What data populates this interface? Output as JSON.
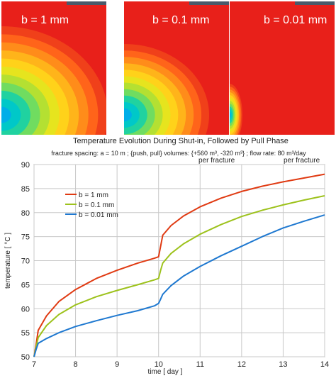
{
  "panels": [
    {
      "label": "b = 1 mm",
      "spread": 1.0
    },
    {
      "label": "b = 0.1 mm",
      "spread": 0.8
    },
    {
      "label": "b = 0.01 mm",
      "spread": 0.12
    }
  ],
  "panel_colors": {
    "hot": "#e8201a",
    "cold": "#00aee8"
  },
  "chart_data": {
    "type": "line",
    "title": "Temperature Evolution During Shut-in, Followed by Pull Phase",
    "subtitle": "fracture spacing: a = 10 m ;  {push, pull} volumes: {+560 m³, -320 m³} ;  flow rate: 80 m³/day",
    "annotation_left": "per fracture",
    "annotation_right": "per fracture",
    "xlabel": "time   [ day ]",
    "ylabel": "temperature   [ °C ]",
    "xlim": [
      7,
      14
    ],
    "ylim": [
      50,
      90
    ],
    "xticks": [
      7,
      8,
      9,
      10,
      11,
      12,
      13,
      14
    ],
    "yticks": [
      50,
      55,
      60,
      65,
      70,
      75,
      80,
      85,
      90
    ],
    "grid": true,
    "legend_position": "top-left",
    "series": [
      {
        "name": "b = 1 mm",
        "color": "#e03a12",
        "x": [
          7.0,
          7.05,
          7.1,
          7.3,
          7.6,
          8.0,
          8.5,
          9.0,
          9.5,
          9.9,
          10.0,
          10.05,
          10.1,
          10.3,
          10.6,
          11.0,
          11.5,
          12.0,
          12.5,
          13.0,
          13.5,
          14.0
        ],
        "y": [
          50.0,
          52.5,
          55.5,
          58.5,
          61.5,
          64.0,
          66.3,
          68.0,
          69.5,
          70.5,
          70.8,
          73.0,
          75.3,
          77.3,
          79.3,
          81.2,
          83.0,
          84.4,
          85.5,
          86.4,
          87.2,
          88.0
        ]
      },
      {
        "name": "b = 0.1 mm",
        "color": "#9dc21c",
        "x": [
          7.0,
          7.05,
          7.1,
          7.3,
          7.6,
          8.0,
          8.5,
          9.0,
          9.5,
          9.9,
          10.0,
          10.05,
          10.1,
          10.3,
          10.6,
          11.0,
          11.5,
          12.0,
          12.5,
          13.0,
          13.5,
          14.0
        ],
        "y": [
          50.0,
          52.0,
          54.0,
          56.5,
          58.8,
          60.8,
          62.5,
          63.8,
          65.0,
          66.0,
          66.3,
          68.0,
          69.5,
          71.5,
          73.5,
          75.5,
          77.5,
          79.2,
          80.5,
          81.6,
          82.6,
          83.5
        ]
      },
      {
        "name": "b = 0.01 mm",
        "color": "#1e78d0",
        "x": [
          7.0,
          7.05,
          7.1,
          7.3,
          7.6,
          8.0,
          8.5,
          9.0,
          9.5,
          9.9,
          10.0,
          10.05,
          10.1,
          10.3,
          10.6,
          11.0,
          11.5,
          12.0,
          12.5,
          13.0,
          13.5,
          14.0
        ],
        "y": [
          50.0,
          51.5,
          52.8,
          53.8,
          55.0,
          56.3,
          57.5,
          58.6,
          59.6,
          60.6,
          61.1,
          62.0,
          63.0,
          64.8,
          66.8,
          68.8,
          71.0,
          73.0,
          75.0,
          76.8,
          78.2,
          79.5
        ]
      }
    ]
  }
}
